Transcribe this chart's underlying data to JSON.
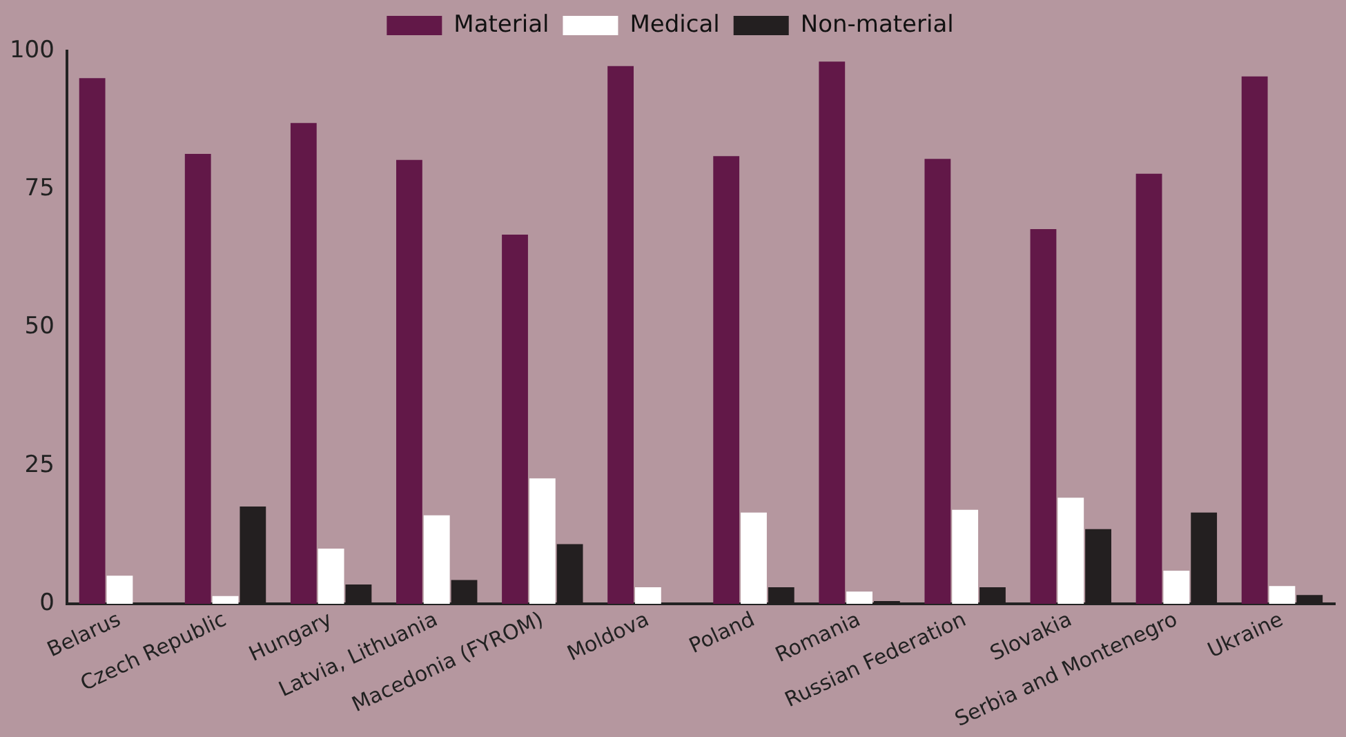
{
  "chart_data": {
    "type": "bar",
    "categories": [
      "Belarus",
      "Czech Republic",
      "Hungary",
      "Latvia, Lithuania",
      "Macedonia (FYROM)",
      "Moldova",
      "Poland",
      "Romania",
      "Russian Federation",
      "Slovakia",
      "Serbia and Montenegro",
      "Ukraine"
    ],
    "series": [
      {
        "name": "Material",
        "color": "#621848",
        "values": [
          95.1,
          81.4,
          87,
          80.3,
          66.8,
          97.3,
          81,
          98.1,
          80.5,
          67.8,
          77.8,
          95.4
        ]
      },
      {
        "name": "Medical",
        "color": "#ffffff",
        "values": [
          5.1,
          1.4,
          10,
          16,
          22.7,
          3,
          16.5,
          2.2,
          17,
          19.2,
          6,
          3.2
        ]
      },
      {
        "name": "Non-material",
        "color": "#231f20",
        "values": [
          0,
          17.6,
          3.5,
          4.3,
          10.8,
          0,
          3,
          0.5,
          3,
          13.5,
          16.5,
          1.6
        ]
      }
    ],
    "ylim": [
      0,
      100
    ],
    "yticks": [
      0,
      25,
      50,
      75,
      100
    ],
    "grid": false,
    "legend": "top"
  }
}
